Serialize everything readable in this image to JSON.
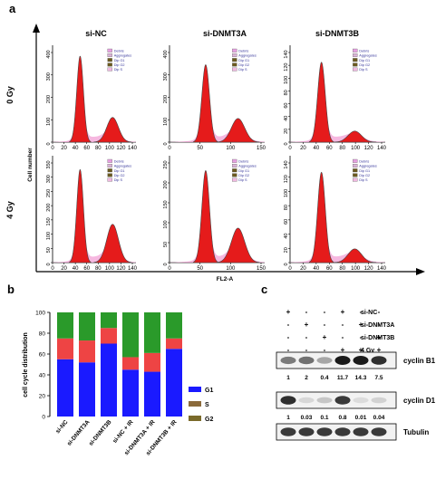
{
  "panels": {
    "a": {
      "letter": "a",
      "columns": [
        "si-NC",
        "si-DNMT3A",
        "si-DNMT3B"
      ],
      "rows": [
        "0 Gy",
        "4 Gy"
      ],
      "ylabel": "Cell number",
      "xlabel": "FL2-A",
      "legend": [
        "Debris",
        "Aggregates",
        "Dip G1",
        "Dip G2",
        "Dip S"
      ],
      "yticks": [
        [
          [
            "0",
            "100",
            "200",
            "300",
            "400"
          ],
          [
            "0",
            "100",
            "200",
            "300",
            "400"
          ],
          [
            "0",
            "20",
            "40",
            "60",
            "80",
            "100",
            "120",
            "140"
          ]
        ],
        [
          [
            "0",
            "50",
            "100",
            "150",
            "200",
            "250",
            "300",
            "350"
          ],
          [
            "0",
            "50",
            "100",
            "150",
            "200",
            "250"
          ],
          [
            "0",
            "20",
            "40",
            "60",
            "80",
            "100",
            "120",
            "140"
          ]
        ]
      ],
      "xticks": [
        [
          "0",
          "20",
          "40",
          "60",
          "80",
          "100",
          "120",
          "140"
        ],
        [
          "0",
          "50",
          "100",
          "150"
        ],
        [
          "0",
          "20",
          "40",
          "60",
          "80",
          "100",
          "120",
          "140"
        ]
      ],
      "peak_heights": [
        [
          [
            400,
            115
          ],
          [
            360,
            110
          ],
          [
            130,
            18
          ]
        ],
        [
          [
            340,
            140
          ],
          [
            240,
            90
          ],
          [
            132,
            20
          ]
        ]
      ]
    },
    "b": {
      "letter": "b",
      "ylabel": "cell cycle distribution",
      "yticks": [
        "0",
        "20",
        "40",
        "60",
        "80",
        "100"
      ]
    },
    "c": {
      "letter": "c",
      "conditions": [
        {
          "label": "si-NC",
          "signs": [
            "+",
            "-",
            "-",
            "+",
            "-",
            "-"
          ]
        },
        {
          "label": "si-DNMT3A",
          "signs": [
            "-",
            "+",
            "-",
            "-",
            "+",
            "-"
          ]
        },
        {
          "label": "si-DNMT3B",
          "signs": [
            "-",
            "-",
            "+",
            "-",
            "-",
            "+"
          ]
        },
        {
          "label": "4 Gy",
          "signs": [
            "-",
            "-",
            "-",
            "+",
            "+",
            "+"
          ]
        }
      ],
      "blots": [
        {
          "label": "cyclin B1",
          "values": [
            "1",
            "2",
            "0.4",
            "11.7",
            "14.3",
            "7.5"
          ],
          "intensity": [
            0.55,
            0.6,
            0.35,
            1.0,
            1.0,
            0.9
          ]
        },
        {
          "label": "cyclin D1",
          "values": [
            "1",
            "0.03",
            "0.1",
            "0.8",
            "0.01",
            "0.04"
          ],
          "intensity": [
            0.9,
            0.12,
            0.2,
            0.85,
            0.1,
            0.15
          ]
        },
        {
          "label": "Tubulin",
          "values": [],
          "intensity": [
            0.85,
            0.85,
            0.85,
            0.85,
            0.85,
            0.85
          ]
        }
      ]
    }
  },
  "chart_data": {
    "type": "bar",
    "categories": [
      "si-NC",
      "si-DNMT3A",
      "si-DNMT3B",
      "si-NC + IR",
      "si-DNMT3A + IR",
      "si-DNMT3B + IR"
    ],
    "series": [
      {
        "name": "G1",
        "values": [
          55,
          52,
          70,
          45,
          43,
          65
        ]
      },
      {
        "name": "S",
        "values": [
          20,
          21,
          15,
          12,
          18,
          10
        ]
      },
      {
        "name": "G2",
        "values": [
          25,
          27,
          15,
          43,
          39,
          25
        ]
      }
    ],
    "ylim": [
      0,
      100
    ],
    "ylabel": "cell cycle distribution",
    "legend": "right",
    "colors": {
      "G1": "#1a1aff",
      "S": "#ee4444",
      "G2": "#2a9a2a",
      "S_legend": "#8b6a3a"
    },
    "legend_colors": {
      "G1": "#1a1aff",
      "S": "#8b6a3a",
      "G2": "#7a6a2a"
    }
  },
  "colors": {
    "red": "#e51b1b",
    "olive": "#7a6a2a",
    "pink": "#f4a6d8",
    "blot_dark": "#1a1a1a",
    "blot_bg": "#f2f2f2"
  }
}
